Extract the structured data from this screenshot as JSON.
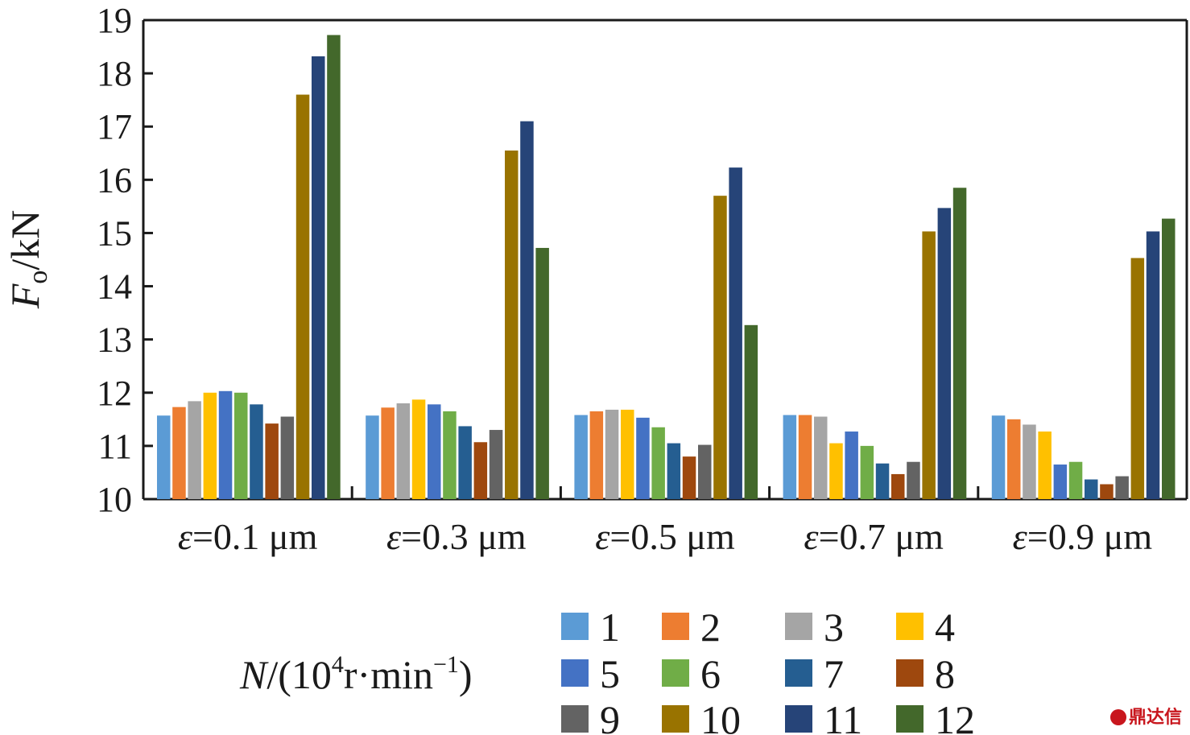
{
  "chart_data": {
    "type": "bar",
    "title": "",
    "ylabel_main": "F",
    "ylabel_sub": "o",
    "ylabel_unit": "/kN",
    "ylim": [
      10,
      19
    ],
    "yticks": [
      "10",
      "11",
      "12",
      "13",
      "14",
      "15",
      "16",
      "17",
      "18",
      "19"
    ],
    "categories": [
      "ε=0.1 μm",
      "ε=0.3 μm",
      "ε=0.5 μm",
      "ε=0.7 μm",
      "ε=0.9 μm"
    ],
    "category_symbol": [
      "ε",
      "ε",
      "ε",
      "ε",
      "ε"
    ],
    "category_rest": [
      "=0.1 μm",
      "=0.3 μm",
      "=0.5 μm",
      "=0.7 μm",
      "=0.9 μm"
    ],
    "legend_title_main": "N",
    "legend_title_a": "/(10",
    "legend_title_sup1": "4",
    "legend_title_b": "r·min",
    "legend_title_sup2": "−1",
    "legend_title_c": ")",
    "legend_placement": "bottom",
    "grid": false,
    "series": [
      {
        "name": "1",
        "color": "#5b9bd5",
        "values": [
          11.57,
          11.57,
          11.58,
          11.58,
          11.57
        ]
      },
      {
        "name": "2",
        "color": "#ed7d31",
        "values": [
          11.73,
          11.72,
          11.65,
          11.58,
          11.5
        ]
      },
      {
        "name": "3",
        "color": "#a5a5a5",
        "values": [
          11.84,
          11.8,
          11.68,
          11.55,
          11.4
        ]
      },
      {
        "name": "4",
        "color": "#ffc000",
        "values": [
          12.0,
          11.87,
          11.68,
          11.05,
          11.27
        ]
      },
      {
        "name": "5",
        "color": "#4472c4",
        "values": [
          12.03,
          11.78,
          11.53,
          11.27,
          10.65
        ]
      },
      {
        "name": "6",
        "color": "#70ad47",
        "values": [
          12.0,
          11.65,
          11.35,
          11.0,
          10.7
        ]
      },
      {
        "name": "7",
        "color": "#255e91",
        "values": [
          11.78,
          11.37,
          11.05,
          10.67,
          10.37
        ]
      },
      {
        "name": "8",
        "color": "#9e480e",
        "values": [
          11.42,
          11.07,
          10.8,
          10.47,
          10.28
        ]
      },
      {
        "name": "9",
        "color": "#636363",
        "values": [
          11.55,
          11.3,
          11.02,
          10.7,
          10.43
        ]
      },
      {
        "name": "10",
        "color": "#997300",
        "values": [
          17.6,
          16.55,
          15.7,
          15.03,
          14.53
        ]
      },
      {
        "name": "11",
        "color": "#264478",
        "values": [
          18.32,
          17.1,
          16.23,
          15.47,
          15.03
        ]
      },
      {
        "name": "12",
        "color": "#43682b",
        "values": [
          18.72,
          14.72,
          13.27,
          15.85,
          15.27
        ]
      }
    ]
  },
  "watermark": "鼎达信"
}
